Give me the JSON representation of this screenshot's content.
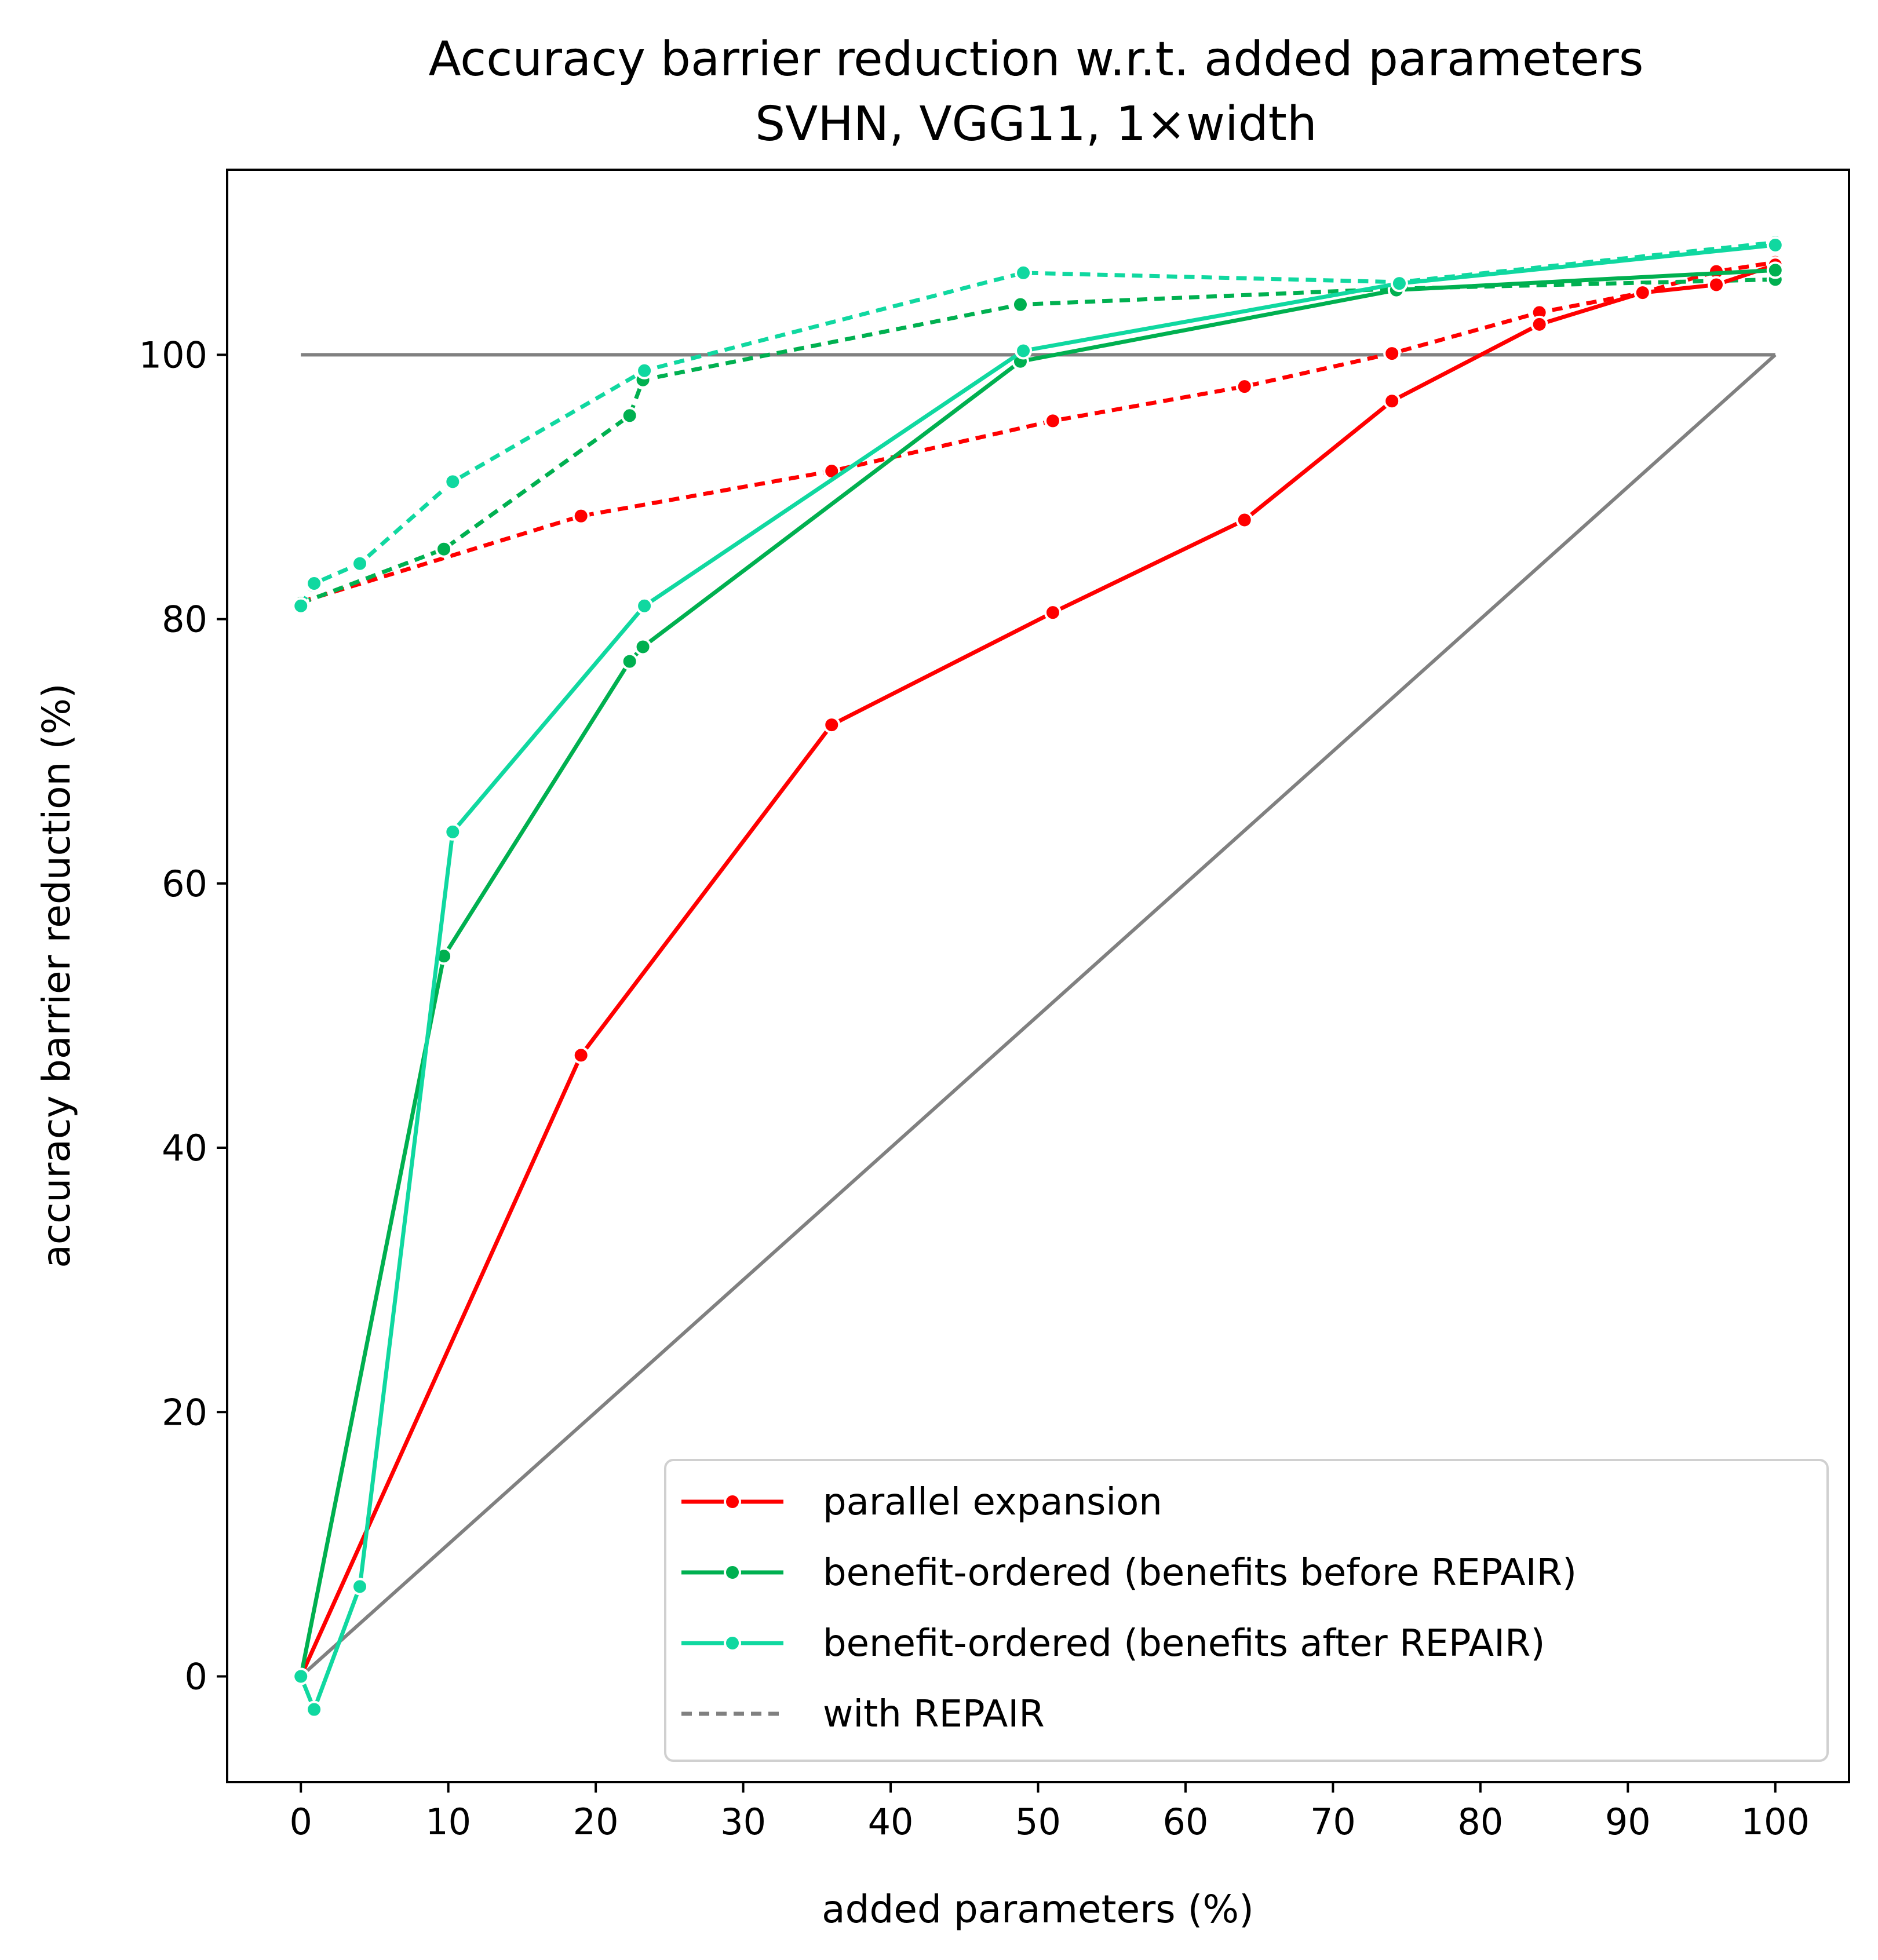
{
  "chart_data": {
    "type": "line",
    "title": "Accuracy barrier reduction w.r.t. added parameters",
    "subtitle": "SVHN, VGG11, 1×width",
    "xlabel": "added parameters (%)",
    "ylabel": "accuracy barrier reduction (%)",
    "xlim": [
      -5,
      105
    ],
    "ylim": [
      -8,
      114
    ],
    "xticks": [
      "0",
      "10",
      "20",
      "30",
      "40",
      "50",
      "60",
      "70",
      "80",
      "90",
      "100"
    ],
    "yticks": [
      "0",
      "20",
      "40",
      "60",
      "80",
      "100"
    ],
    "grid": false,
    "legend_position": "lower-right",
    "reference_lines": [
      {
        "x": [
          0,
          100
        ],
        "y": [
          100,
          100
        ],
        "color": "#808080"
      },
      {
        "x": [
          0,
          100
        ],
        "y": [
          0,
          100
        ],
        "color": "#808080"
      }
    ],
    "series": [
      {
        "name": "parallel expansion",
        "color": "#ff0000",
        "style": "solid",
        "x": [
          0,
          19,
          36,
          51,
          64,
          74,
          84,
          91,
          96,
          100
        ],
        "y": [
          0,
          47,
          72,
          80.5,
          87.5,
          96.5,
          102.3,
          104.7,
          105.3,
          106.8
        ]
      },
      {
        "name": "benefit-ordered (benefits before REPAIR)",
        "color": "#00b050",
        "style": "solid",
        "x": [
          0,
          9.7,
          22.3,
          23.2,
          48.8,
          74.3,
          100
        ],
        "y": [
          0,
          54.5,
          76.8,
          77.9,
          99.5,
          104.9,
          106.4
        ]
      },
      {
        "name": "benefit-ordered (benefits after REPAIR)",
        "color": "#10d8a0",
        "style": "solid",
        "x": [
          0,
          0.9,
          4.0,
          10.3,
          23.3,
          49.0,
          74.5,
          100
        ],
        "y": [
          0,
          -2.5,
          6.8,
          63.9,
          81.0,
          100.3,
          105.4,
          108.3
        ]
      },
      {
        "name": "",
        "color": "#ff0000",
        "style": "dashed",
        "x": [
          0,
          19,
          36,
          51,
          64,
          74,
          84,
          91,
          96,
          100
        ],
        "y": [
          81.3,
          87.8,
          91.2,
          95.0,
          97.6,
          100.1,
          103.2,
          104.7,
          106.3,
          107.0
        ]
      },
      {
        "name": "",
        "color": "#00b050",
        "style": "dashed",
        "x": [
          0,
          9.7,
          22.3,
          23.2,
          48.8,
          74.3,
          100
        ],
        "y": [
          81.2,
          85.3,
          95.4,
          98.1,
          103.8,
          105.0,
          105.7
        ]
      },
      {
        "name": "",
        "color": "#10d8a0",
        "style": "dashed",
        "x": [
          0,
          0.9,
          4.0,
          10.3,
          23.3,
          49.0,
          74.5,
          100
        ],
        "y": [
          81.0,
          82.7,
          84.2,
          90.4,
          98.8,
          106.2,
          105.5,
          108.5
        ]
      }
    ],
    "legend": [
      {
        "label": "parallel expansion",
        "color": "#ff0000",
        "style": "solid"
      },
      {
        "label": "benefit-ordered (benefits before REPAIR)",
        "color": "#00b050",
        "style": "solid"
      },
      {
        "label": "benefit-ordered (benefits after REPAIR)",
        "color": "#10d8a0",
        "style": "solid"
      },
      {
        "label": "with REPAIR",
        "color": "#808080",
        "style": "dashed"
      }
    ]
  }
}
